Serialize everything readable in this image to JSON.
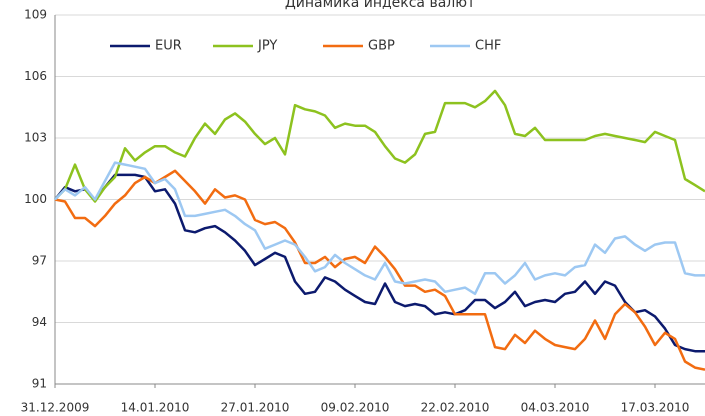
{
  "chart_data": {
    "type": "line",
    "title": "Динамика индекса валют",
    "categories": [
      "31.12.2009",
      null,
      null,
      null,
      null,
      null,
      null,
      null,
      null,
      null,
      "14.01.2010",
      null,
      null,
      null,
      null,
      null,
      null,
      null,
      null,
      null,
      "27.01.2010",
      null,
      null,
      null,
      null,
      null,
      null,
      null,
      null,
      null,
      "09.02.2010",
      null,
      null,
      null,
      null,
      null,
      null,
      null,
      null,
      null,
      "22.02.2010",
      null,
      null,
      null,
      null,
      null,
      null,
      null,
      null,
      null,
      "04.03.2010",
      null,
      null,
      null,
      null,
      null,
      null,
      null,
      null,
      null,
      "17.03.2010",
      null,
      null,
      null,
      null,
      null
    ],
    "series": [
      {
        "name": "EUR",
        "color": "#0c1a6e",
        "values": [
          100,
          100.6,
          100.4,
          100.5,
          100,
          100.6,
          101.2,
          101.2,
          101.2,
          101.1,
          100.4,
          100.5,
          99.8,
          98.5,
          98.4,
          98.6,
          98.7,
          98.4,
          98.0,
          97.5,
          96.8,
          97.1,
          97.4,
          97.2,
          96.0,
          95.4,
          95.5,
          96.2,
          96.0,
          95.6,
          95.3,
          95.0,
          94.9,
          95.9,
          95.0,
          94.8,
          94.9,
          94.8,
          94.4,
          94.5,
          94.4,
          94.6,
          95.1,
          95.1,
          94.7,
          95.0,
          95.5,
          94.8,
          95.0,
          95.1,
          95.0,
          95.4,
          95.5,
          96.0,
          95.4,
          96.0,
          95.8,
          95.0,
          94.5,
          94.6,
          94.3,
          93.7,
          92.9,
          92.7,
          92.6,
          92.6
        ]
      },
      {
        "name": "JPY",
        "color": "#8dc21f",
        "values": [
          100,
          100.5,
          101.7,
          100.5,
          99.9,
          100.6,
          101.1,
          102.5,
          101.9,
          102.3,
          102.6,
          102.6,
          102.3,
          102.1,
          103.0,
          103.7,
          103.2,
          103.9,
          104.2,
          103.8,
          103.2,
          102.7,
          103.0,
          102.2,
          104.6,
          104.4,
          104.3,
          104.1,
          103.5,
          103.7,
          103.6,
          103.6,
          103.3,
          102.6,
          102.0,
          101.8,
          102.2,
          103.2,
          103.3,
          104.7,
          104.7,
          104.7,
          104.5,
          104.8,
          105.3,
          104.6,
          103.2,
          103.1,
          103.5,
          102.9,
          102.9,
          102.9,
          102.9,
          102.9,
          103.1,
          103.2,
          103.1,
          103.0,
          102.9,
          102.8,
          103.3,
          103.1,
          102.9,
          101.0,
          100.7,
          100.4
        ]
      },
      {
        "name": "GBP",
        "color": "#f26c11",
        "values": [
          100,
          99.9,
          99.1,
          99.1,
          98.7,
          99.2,
          99.8,
          100.2,
          100.8,
          101.1,
          100.8,
          101.1,
          101.4,
          100.9,
          100.4,
          99.8,
          100.5,
          100.1,
          100.2,
          100.0,
          99.0,
          98.8,
          98.9,
          98.6,
          97.9,
          96.9,
          96.9,
          97.2,
          96.7,
          97.1,
          97.2,
          96.9,
          97.7,
          97.2,
          96.6,
          95.8,
          95.8,
          95.5,
          95.6,
          95.3,
          94.4,
          94.4,
          94.4,
          94.4,
          92.8,
          92.7,
          93.4,
          93.0,
          93.6,
          93.2,
          92.9,
          92.8,
          92.7,
          93.2,
          94.1,
          93.2,
          94.4,
          94.9,
          94.5,
          93.8,
          92.9,
          93.5,
          93.2,
          92.1,
          91.8,
          91.7
        ]
      },
      {
        "name": "CHF",
        "color": "#9dc8f2",
        "values": [
          100,
          100.5,
          100.2,
          100.6,
          100.0,
          100.9,
          101.8,
          101.7,
          101.6,
          101.5,
          100.8,
          101.0,
          100.5,
          99.2,
          99.2,
          99.3,
          99.4,
          99.5,
          99.2,
          98.8,
          98.5,
          97.6,
          97.8,
          98.0,
          97.8,
          97.2,
          96.5,
          96.7,
          97.3,
          96.9,
          96.6,
          96.3,
          96.1,
          96.9,
          96.0,
          95.9,
          96.0,
          96.1,
          96.0,
          95.5,
          95.6,
          95.7,
          95.4,
          96.4,
          96.4,
          95.9,
          96.3,
          96.9,
          96.1,
          96.3,
          96.4,
          96.3,
          96.7,
          96.8,
          97.8,
          97.4,
          98.1,
          98.2,
          97.8,
          97.5,
          97.8,
          97.9,
          97.9,
          96.4,
          96.3,
          96.3
        ]
      }
    ],
    "ylim": [
      91,
      109
    ],
    "yticks": [
      91,
      94,
      97,
      100,
      103,
      106,
      109
    ],
    "grid": true,
    "legend": "top"
  }
}
